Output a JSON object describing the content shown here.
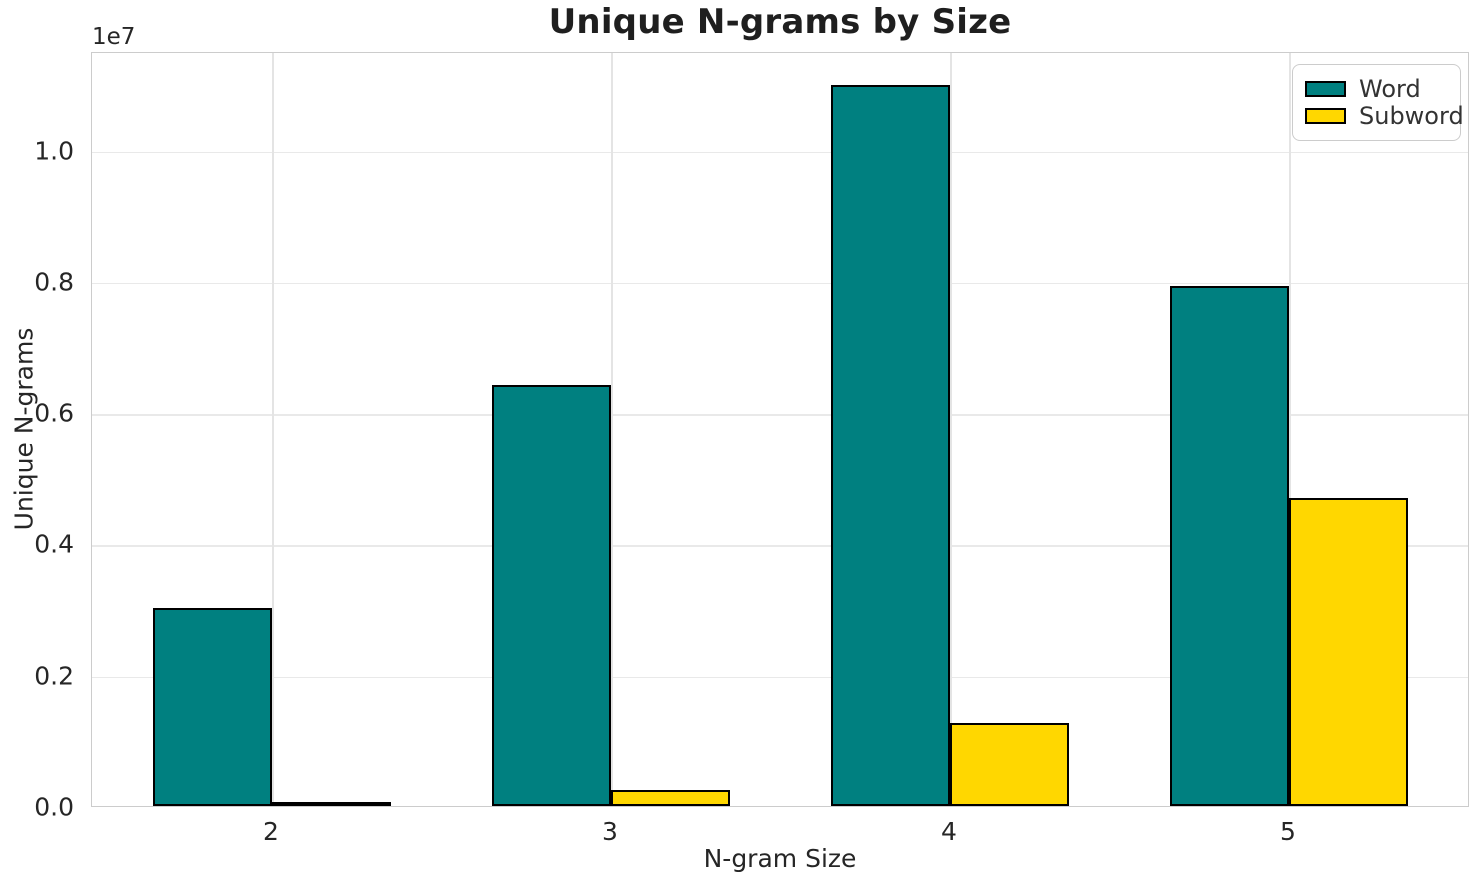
{
  "chart_data": {
    "type": "bar",
    "title": "Unique N-grams by Size",
    "xlabel": "N-gram Size",
    "ylabel": "Unique N-grams",
    "y_offset_text": "1e7",
    "categories": [
      "2",
      "3",
      "4",
      "5"
    ],
    "series": [
      {
        "name": "Word",
        "color": "#008080",
        "edge_color": "#000000",
        "values": [
          2980000,
          6390000,
          10950000,
          7890000
        ]
      },
      {
        "name": "Subword",
        "color": "#FFD700",
        "edge_color": "#000000",
        "values": [
          30000,
          210000,
          1230000,
          4660000
        ]
      }
    ],
    "bar_width_fraction": 0.35,
    "ylim": [
      0,
      11500000
    ],
    "yticks": {
      "values": [
        0,
        2000000,
        4000000,
        6000000,
        8000000,
        10000000
      ],
      "labels": [
        "0.0",
        "0.2",
        "0.4",
        "0.6",
        "0.8",
        "1.0"
      ]
    },
    "grid": true,
    "legend": {
      "position": "upper right",
      "labels": [
        "Word",
        "Subword"
      ]
    }
  },
  "colors": {
    "grid_line": "#e9e9e9",
    "spine": "#cccccc",
    "text": "#262626"
  }
}
